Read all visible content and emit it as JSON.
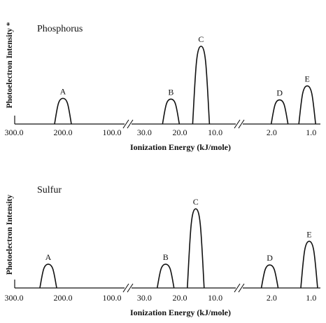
{
  "chart_data": [
    {
      "type": "line",
      "title": "Phosphorus",
      "ylabel": "Photoelectron Intensity",
      "ylabel_mark": "*",
      "xlabel": "Ionization Energy (kJ/mole)",
      "x_reversed": true,
      "x_axis_segments": [
        {
          "range": [
            300,
            0
          ],
          "ticks": [
            "300.0",
            "200.0",
            "100.0"
          ]
        },
        {
          "range": [
            35,
            5
          ],
          "ticks": [
            "30.0",
            "20.0",
            "10.0"
          ]
        },
        {
          "range": [
            3,
            0.5
          ],
          "ticks": [
            "2.0",
            "1.0"
          ]
        }
      ],
      "series": [
        {
          "values": [
            {
              "label": "A",
              "x": 200,
              "height": 0.33
            },
            {
              "label": "B",
              "x": 22.5,
              "height": 0.32
            },
            {
              "label": "C",
              "x": 14,
              "height": 1.0
            },
            {
              "label": "D",
              "x": 1.8,
              "height": 0.31
            },
            {
              "label": "E",
              "x": 1.1,
              "height": 0.49
            }
          ]
        }
      ]
    },
    {
      "type": "line",
      "title": "Sulfur",
      "ylabel": "Photoelectron Intensity",
      "xlabel": "Ionization Energy (kJ/mole)",
      "x_reversed": true,
      "x_axis_segments": [
        {
          "range": [
            300,
            0
          ],
          "ticks": [
            "300.0",
            "200.0",
            "100.0"
          ]
        },
        {
          "range": [
            35,
            5
          ],
          "ticks": [
            "30.0",
            "20.0",
            "10.0"
          ]
        },
        {
          "range": [
            3,
            0.5
          ],
          "ticks": [
            "2.0",
            "1.0"
          ]
        }
      ],
      "series": [
        {
          "values": [
            {
              "label": "A",
              "x": 230,
              "height": 0.3
            },
            {
              "label": "B",
              "x": 24,
              "height": 0.3
            },
            {
              "label": "C",
              "x": 15.5,
              "height": 1.0
            },
            {
              "label": "D",
              "x": 2.05,
              "height": 0.29
            },
            {
              "label": "E",
              "x": 1.05,
              "height": 0.59
            }
          ]
        }
      ]
    }
  ]
}
